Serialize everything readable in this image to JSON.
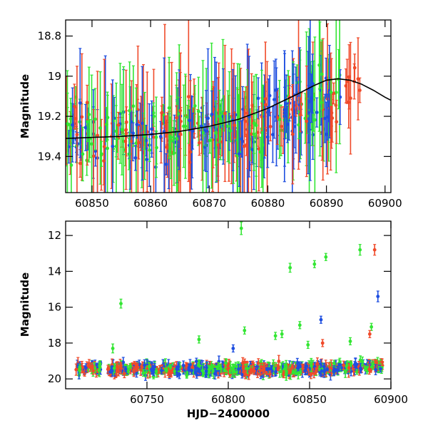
{
  "chart_data": [
    {
      "type": "scatter",
      "panel": "top",
      "ylabel": "Magnitude",
      "xlabel": "",
      "xlim": [
        60845.5,
        60901
      ],
      "ylim": [
        19.58,
        18.72
      ],
      "y_inverted": true,
      "x_ticks": [
        60850,
        60860,
        60870,
        60880,
        60890,
        60900
      ],
      "x_tick_labels": [
        "60850",
        "60860",
        "60870",
        "60880",
        "60890",
        "60900"
      ],
      "y_ticks": [
        18.8,
        19,
        19.2,
        19.4
      ],
      "y_tick_labels": [
        "18.8",
        "19",
        "19.2",
        "19.4"
      ],
      "series_colors": {
        "g": "#33e633",
        "r": "#f04a2a",
        "b": "#1f4fe0"
      },
      "model_curve": {
        "color": "#000000",
        "points": [
          [
            60845.5,
            19.31
          ],
          [
            60850,
            19.305
          ],
          [
            60855,
            19.3
          ],
          [
            60860,
            19.29
          ],
          [
            60865,
            19.275
          ],
          [
            60870,
            19.25
          ],
          [
            60875,
            19.215
          ],
          [
            60880,
            19.16
          ],
          [
            60885,
            19.09
          ],
          [
            60888,
            19.045
          ],
          [
            60890,
            19.02
          ],
          [
            60892,
            19.013
          ],
          [
            60894,
            19.02
          ],
          [
            60896,
            19.04
          ],
          [
            60898,
            19.07
          ],
          [
            60900,
            19.105
          ],
          [
            60901,
            19.12
          ]
        ]
      }
    },
    {
      "type": "scatter",
      "panel": "bottom",
      "ylabel": "Magnitude",
      "xlabel": "HJD−2400000",
      "xlim": [
        60700,
        60900
      ],
      "ylim": [
        20.55,
        11.2
      ],
      "y_inverted": true,
      "x_ticks": [
        60750,
        60800,
        60850,
        60900
      ],
      "x_tick_labels": [
        "60750",
        "60800",
        "60850",
        "60900"
      ],
      "y_ticks": [
        12,
        14,
        16,
        18,
        20
      ],
      "y_tick_labels": [
        "12",
        "14",
        "16",
        "18",
        "20"
      ],
      "series_colors": {
        "g": "#33e633",
        "r": "#f04a2a",
        "b": "#1f4fe0"
      },
      "outliers": [
        {
          "x": 60808,
          "y": 11.6,
          "err": 0.35,
          "band": "g"
        },
        {
          "x": 60734,
          "y": 15.8,
          "err": 0.25,
          "band": "g"
        },
        {
          "x": 60838,
          "y": 13.8,
          "err": 0.25,
          "band": "g"
        },
        {
          "x": 60853,
          "y": 13.6,
          "err": 0.2,
          "band": "g"
        },
        {
          "x": 60860,
          "y": 13.2,
          "err": 0.2,
          "band": "g"
        },
        {
          "x": 60881,
          "y": 12.8,
          "err": 0.3,
          "band": "g"
        },
        {
          "x": 60890,
          "y": 12.8,
          "err": 0.3,
          "band": "r"
        },
        {
          "x": 60892,
          "y": 15.4,
          "err": 0.3,
          "band": "b"
        },
        {
          "x": 60857,
          "y": 16.7,
          "err": 0.2,
          "band": "b"
        },
        {
          "x": 60729,
          "y": 18.3,
          "err": 0.25,
          "band": "g"
        },
        {
          "x": 60810,
          "y": 17.3,
          "err": 0.2,
          "band": "g"
        },
        {
          "x": 60782,
          "y": 17.8,
          "err": 0.2,
          "band": "g"
        },
        {
          "x": 60829,
          "y": 17.6,
          "err": 0.2,
          "band": "g"
        },
        {
          "x": 60833,
          "y": 17.5,
          "err": 0.2,
          "band": "g"
        },
        {
          "x": 60844,
          "y": 17.0,
          "err": 0.2,
          "band": "g"
        },
        {
          "x": 60888,
          "y": 17.1,
          "err": 0.2,
          "band": "g"
        },
        {
          "x": 60887,
          "y": 17.5,
          "err": 0.2,
          "band": "r"
        },
        {
          "x": 60803,
          "y": 18.3,
          "err": 0.2,
          "band": "b"
        },
        {
          "x": 60849,
          "y": 18.1,
          "err": 0.2,
          "band": "g"
        },
        {
          "x": 60875,
          "y": 17.9,
          "err": 0.2,
          "band": "g"
        },
        {
          "x": 60858,
          "y": 18.0,
          "err": 0.2,
          "band": "r"
        }
      ]
    }
  ]
}
